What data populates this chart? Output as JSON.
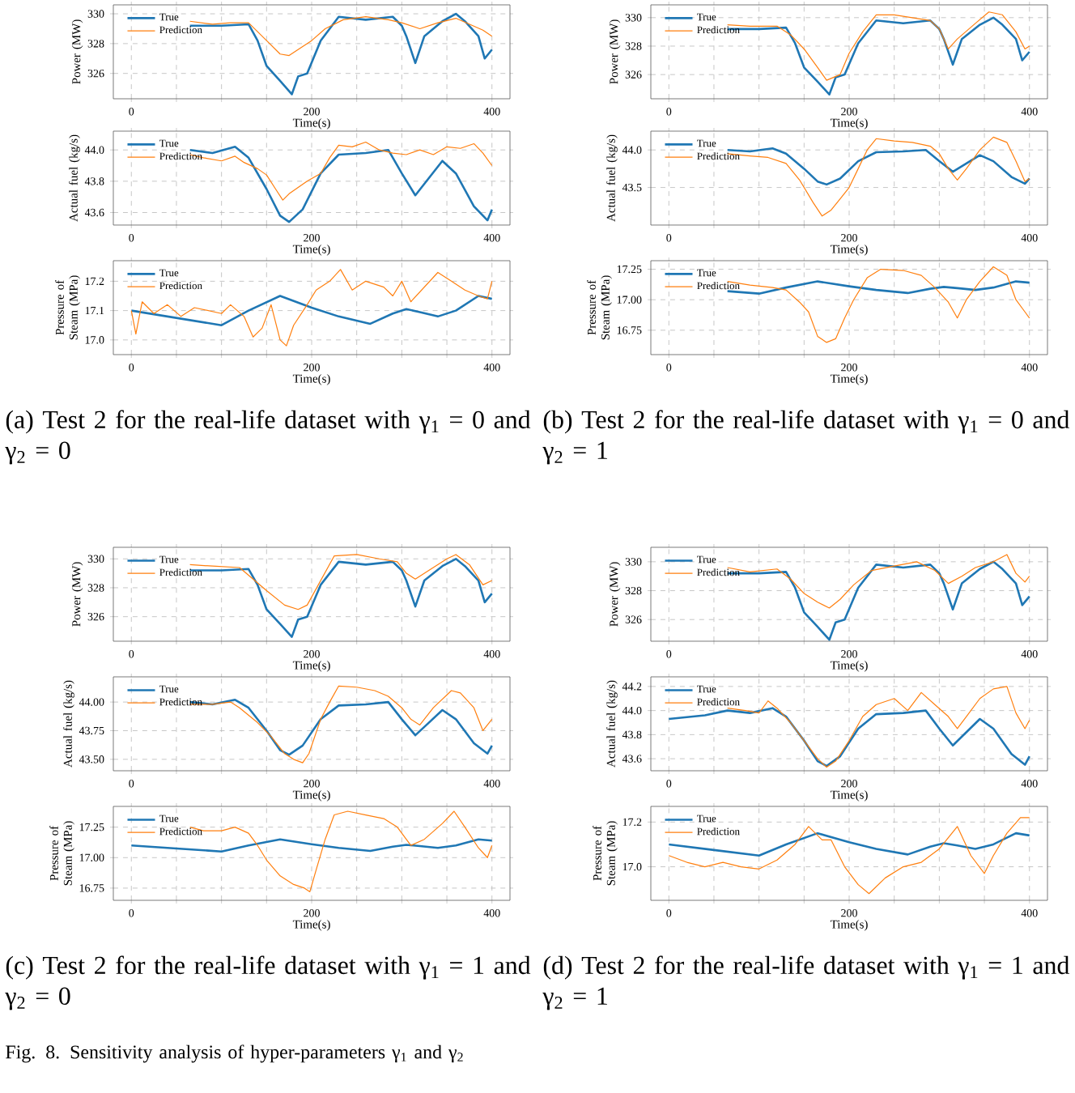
{
  "chart_data": [
    {
      "type": "line",
      "xlabel": "Time(s)",
      "ylabel": "Power (MW)",
      "xlim": [
        -20,
        420
      ],
      "xticks": [
        0,
        {
          "value": 50,
          "label": null
        },
        {
          "value": 100,
          "label": null
        },
        {
          "value": 150,
          "label": null
        },
        200,
        {
          "value": 250,
          "label": null
        },
        {
          "value": 300,
          "label": null
        },
        {
          "value": 350,
          "label": null
        },
        400
      ],
      "ylim": [
        324.3,
        330.6
      ],
      "yticks": [
        326,
        328,
        330
      ],
      "grid": true,
      "legend": "top left",
      "series": [
        {
          "name": "True",
          "color": "#1f77b4",
          "x": [
            65,
            100,
            130,
            140,
            150,
            165,
            178,
            185,
            195,
            210,
            230,
            260,
            290,
            300,
            305,
            315,
            325,
            345,
            360,
            370,
            385,
            392,
            400
          ],
          "values": [
            329.2,
            329.2,
            329.3,
            328.2,
            326.5,
            325.5,
            324.6,
            325.8,
            326.0,
            328.2,
            329.8,
            329.6,
            329.8,
            329.2,
            328.5,
            326.7,
            328.5,
            329.5,
            330.0,
            329.5,
            328.5,
            327.0,
            327.6
          ]
        },
        {
          "name": "Prediction",
          "color": "#ff7f0e",
          "x": [
            65,
            90,
            110,
            130,
            140,
            150,
            165,
            175,
            190,
            200,
            215,
            235,
            260,
            285,
            300,
            320,
            340,
            360,
            375,
            390,
            400
          ],
          "values": [
            329.5,
            329.3,
            329.4,
            329.4,
            328.8,
            328.2,
            327.3,
            327.2,
            327.8,
            328.2,
            329.0,
            329.6,
            329.8,
            329.6,
            329.4,
            329.0,
            329.4,
            329.7,
            329.3,
            328.9,
            328.5
          ]
        }
      ]
    },
    {
      "type": "line",
      "xlabel": "Time(s)",
      "ylabel": "Actual fuel (kg/s)",
      "xlim": [
        -20,
        420
      ],
      "xticks": [
        0,
        {
          "value": 50,
          "label": null
        },
        {
          "value": 100,
          "label": null
        },
        {
          "value": 150,
          "label": null
        },
        200,
        {
          "value": 250,
          "label": null
        },
        {
          "value": 300,
          "label": null
        },
        {
          "value": 350,
          "label": null
        },
        400
      ],
      "ylim": [
        43.52,
        44.12
      ],
      "yticks": [
        43.6,
        43.8,
        {
          "value": 44,
          "label": "44.0"
        }
      ],
      "grid": true,
      "legend": "top left",
      "series": [
        {
          "name": "True",
          "color": "#1f77b4",
          "x": [
            65,
            90,
            115,
            130,
            150,
            165,
            175,
            190,
            210,
            230,
            260,
            285,
            300,
            315,
            330,
            345,
            360,
            380,
            395,
            400
          ],
          "values": [
            44.0,
            43.98,
            44.02,
            43.95,
            43.75,
            43.58,
            43.54,
            43.62,
            43.85,
            43.97,
            43.98,
            44.0,
            43.85,
            43.71,
            43.82,
            43.93,
            43.85,
            43.64,
            43.55,
            43.62
          ]
        },
        {
          "name": "Prediction",
          "color": "#ff7f0e",
          "x": [
            65,
            80,
            100,
            115,
            125,
            140,
            150,
            160,
            168,
            175,
            185,
            195,
            210,
            220,
            230,
            245,
            260,
            275,
            290,
            305,
            320,
            335,
            350,
            365,
            380,
            390,
            400
          ],
          "values": [
            43.97,
            43.95,
            43.93,
            43.96,
            43.92,
            43.88,
            43.84,
            43.75,
            43.68,
            43.72,
            43.76,
            43.8,
            43.85,
            43.95,
            44.03,
            44.02,
            44.05,
            44.0,
            43.98,
            43.97,
            44.0,
            43.97,
            44.02,
            44.01,
            44.04,
            43.98,
            43.9
          ]
        }
      ]
    },
    {
      "type": "line",
      "xlabel": "Time(s)",
      "ylabel": "Pressure of Steam (MPa)",
      "xlim": [
        -20,
        420
      ],
      "xticks": [
        0,
        {
          "value": 50,
          "label": null
        },
        {
          "value": 100,
          "label": null
        },
        {
          "value": 150,
          "label": null
        },
        200,
        {
          "value": 250,
          "label": null
        },
        {
          "value": 300,
          "label": null
        },
        {
          "value": 350,
          "label": null
        },
        400
      ],
      "ylim": [
        16.95,
        17.27
      ],
      "yticks": [
        {
          "value": 17,
          "label": "17.0"
        },
        17.1,
        17.2
      ],
      "grid": true,
      "legend": "top left",
      "annotations": [
        "(a) Test 2 for the real-life dataset with γ$_{1}$ = 0 and γ$_{2}$ = 0"
      ],
      "series": [
        {
          "name": "True",
          "color": "#1f77b4",
          "x": [
            0,
            50,
            100,
            130,
            165,
            200,
            230,
            265,
            290,
            305,
            320,
            340,
            360,
            385,
            400
          ],
          "values": [
            17.1,
            17.075,
            17.05,
            17.1,
            17.15,
            17.11,
            17.08,
            17.055,
            17.09,
            17.105,
            17.095,
            17.08,
            17.1,
            17.15,
            17.14
          ]
        },
        {
          "name": "Prediction",
          "color": "#ff7f0e",
          "x": [
            0,
            5,
            12,
            25,
            40,
            55,
            70,
            85,
            100,
            110,
            125,
            135,
            145,
            155,
            165,
            172,
            180,
            195,
            205,
            220,
            232,
            245,
            260,
            280,
            290,
            300,
            310,
            325,
            340,
            355,
            370,
            385,
            395,
            400
          ],
          "values": [
            17.1,
            17.02,
            17.13,
            17.09,
            17.12,
            17.08,
            17.11,
            17.1,
            17.09,
            17.12,
            17.08,
            17.01,
            17.04,
            17.12,
            17.0,
            16.98,
            17.05,
            17.12,
            17.17,
            17.2,
            17.24,
            17.17,
            17.2,
            17.18,
            17.15,
            17.2,
            17.13,
            17.18,
            17.23,
            17.2,
            17.17,
            17.15,
            17.14,
            17.2
          ]
        }
      ]
    },
    {
      "type": "line",
      "xlabel": "Time(s)",
      "ylabel": "Power (MW)",
      "xlim": [
        -20,
        420
      ],
      "xticks": [
        0,
        {
          "value": 50,
          "label": null
        },
        {
          "value": 100,
          "label": null
        },
        {
          "value": 150,
          "label": null
        },
        200,
        {
          "value": 250,
          "label": null
        },
        {
          "value": 300,
          "label": null
        },
        {
          "value": 350,
          "label": null
        },
        400
      ],
      "ylim": [
        324.3,
        330.9
      ],
      "yticks": [
        326,
        328,
        330
      ],
      "grid": true,
      "legend": "top left",
      "series": [
        {
          "name": "True",
          "color": "#1f77b4",
          "x": [
            65,
            100,
            130,
            140,
            150,
            165,
            178,
            185,
            195,
            210,
            230,
            260,
            290,
            300,
            305,
            315,
            325,
            345,
            360,
            370,
            385,
            392,
            400
          ],
          "values": [
            329.2,
            329.2,
            329.3,
            328.2,
            326.5,
            325.5,
            324.6,
            325.8,
            326.0,
            328.2,
            329.8,
            329.6,
            329.8,
            329.2,
            328.5,
            326.7,
            328.5,
            329.5,
            330.0,
            329.5,
            328.5,
            327.0,
            327.6
          ]
        },
        {
          "name": "Prediction",
          "color": "#ff7f0e",
          "x": [
            65,
            90,
            120,
            135,
            150,
            165,
            175,
            190,
            200,
            215,
            230,
            250,
            270,
            290,
            300,
            310,
            320,
            340,
            355,
            370,
            385,
            395,
            400
          ],
          "values": [
            329.5,
            329.4,
            329.4,
            328.8,
            327.8,
            326.5,
            325.6,
            326.0,
            327.5,
            329.0,
            330.2,
            330.2,
            330.0,
            329.8,
            329.2,
            327.8,
            328.5,
            329.6,
            330.4,
            330.2,
            329.0,
            327.8,
            328.0
          ]
        }
      ]
    },
    {
      "type": "line",
      "xlabel": "Time(s)",
      "ylabel": "Actual fuel (kg/s)",
      "xlim": [
        -20,
        420
      ],
      "xticks": [
        0,
        {
          "value": 50,
          "label": null
        },
        {
          "value": 100,
          "label": null
        },
        {
          "value": 150,
          "label": null
        },
        200,
        {
          "value": 250,
          "label": null
        },
        {
          "value": 300,
          "label": null
        },
        {
          "value": 350,
          "label": null
        },
        400
      ],
      "ylim": [
        43.0,
        44.25
      ],
      "yticks": [
        43.5,
        {
          "value": 44,
          "label": "44.0"
        }
      ],
      "grid": true,
      "legend": "top left",
      "series": [
        {
          "name": "True",
          "color": "#1f77b4",
          "x": [
            65,
            90,
            115,
            130,
            150,
            165,
            175,
            190,
            210,
            230,
            260,
            285,
            300,
            315,
            330,
            345,
            360,
            380,
            395,
            400
          ],
          "values": [
            44.0,
            43.98,
            44.02,
            43.95,
            43.75,
            43.58,
            43.54,
            43.62,
            43.85,
            43.97,
            43.98,
            44.0,
            43.85,
            43.71,
            43.82,
            43.93,
            43.85,
            43.64,
            43.55,
            43.62
          ]
        },
        {
          "name": "Prediction",
          "color": "#ff7f0e",
          "x": [
            65,
            90,
            110,
            130,
            145,
            160,
            170,
            180,
            190,
            200,
            210,
            220,
            230,
            250,
            270,
            290,
            300,
            310,
            320,
            330,
            345,
            360,
            375,
            385,
            395,
            400
          ],
          "values": [
            43.95,
            43.92,
            43.9,
            43.82,
            43.6,
            43.3,
            43.12,
            43.2,
            43.35,
            43.5,
            43.75,
            44.0,
            44.15,
            44.12,
            44.1,
            44.05,
            43.95,
            43.75,
            43.6,
            43.75,
            44.0,
            44.17,
            44.1,
            43.85,
            43.58,
            43.62
          ]
        }
      ]
    },
    {
      "type": "line",
      "xlabel": "Time(s)",
      "ylabel": "Pressure of Steam (MPa)",
      "xlim": [
        -20,
        420
      ],
      "xticks": [
        0,
        {
          "value": 50,
          "label": null
        },
        {
          "value": 100,
          "label": null
        },
        {
          "value": 150,
          "label": null
        },
        200,
        {
          "value": 250,
          "label": null
        },
        {
          "value": 300,
          "label": null
        },
        {
          "value": 350,
          "label": null
        },
        400
      ],
      "ylim": [
        16.55,
        17.32
      ],
      "yticks": [
        16.75,
        {
          "value": 17,
          "label": "17.00"
        },
        17.25
      ],
      "grid": true,
      "legend": "top left",
      "annotations": [
        "(b) Test 2 for the real-life dataset with γ$_{1}$ = 0 and γ$_{2}$ = 1"
      ],
      "series": [
        {
          "name": "True",
          "color": "#1f77b4",
          "x": [
            65,
            100,
            130,
            165,
            200,
            230,
            265,
            290,
            305,
            320,
            340,
            360,
            385,
            400
          ],
          "values": [
            17.07,
            17.05,
            17.1,
            17.15,
            17.11,
            17.08,
            17.055,
            17.09,
            17.105,
            17.095,
            17.08,
            17.1,
            17.15,
            17.14
          ]
        },
        {
          "name": "Prediction",
          "color": "#ff7f0e",
          "x": [
            65,
            90,
            115,
            130,
            145,
            155,
            165,
            175,
            185,
            195,
            205,
            220,
            235,
            260,
            280,
            295,
            310,
            320,
            330,
            345,
            360,
            375,
            385,
            395,
            400
          ],
          "values": [
            17.15,
            17.12,
            17.1,
            17.08,
            16.98,
            16.9,
            16.7,
            16.65,
            16.68,
            16.85,
            17.0,
            17.18,
            17.25,
            17.24,
            17.2,
            17.1,
            16.98,
            16.85,
            17.0,
            17.15,
            17.27,
            17.2,
            17.0,
            16.9,
            16.85
          ]
        }
      ]
    },
    {
      "type": "line",
      "xlabel": "Time(s)",
      "ylabel": "Power (MW)",
      "xlim": [
        -20,
        420
      ],
      "xticks": [
        0,
        {
          "value": 50,
          "label": null
        },
        {
          "value": 100,
          "label": null
        },
        {
          "value": 150,
          "label": null
        },
        200,
        {
          "value": 250,
          "label": null
        },
        {
          "value": 300,
          "label": null
        },
        {
          "value": 350,
          "label": null
        },
        400
      ],
      "ylim": [
        324.3,
        330.8
      ],
      "yticks": [
        326,
        328,
        330
      ],
      "grid": true,
      "legend": "top left",
      "series": [
        {
          "name": "True",
          "color": "#1f77b4",
          "x": [
            65,
            100,
            130,
            140,
            150,
            165,
            178,
            185,
            195,
            210,
            230,
            260,
            290,
            300,
            305,
            315,
            325,
            345,
            360,
            370,
            385,
            392,
            400
          ],
          "values": [
            329.2,
            329.2,
            329.3,
            328.2,
            326.5,
            325.5,
            324.6,
            325.8,
            326.0,
            328.2,
            329.8,
            329.6,
            329.8,
            329.2,
            328.5,
            326.7,
            328.5,
            329.5,
            330.0,
            329.5,
            328.5,
            327.0,
            327.6
          ]
        },
        {
          "name": "Prediction",
          "color": "#ff7f0e",
          "x": [
            65,
            90,
            120,
            135,
            150,
            170,
            185,
            195,
            210,
            225,
            250,
            275,
            295,
            305,
            315,
            330,
            350,
            360,
            375,
            390,
            400
          ],
          "values": [
            329.6,
            329.5,
            329.4,
            328.6,
            327.8,
            326.8,
            326.5,
            326.8,
            328.5,
            330.2,
            330.3,
            330.0,
            329.8,
            329.0,
            328.6,
            329.2,
            330.0,
            330.3,
            329.6,
            328.2,
            328.5
          ]
        }
      ]
    },
    {
      "type": "line",
      "xlabel": "Time(s)",
      "ylabel": "Actual fuel (kg/s)",
      "xlim": [
        -20,
        420
      ],
      "xticks": [
        0,
        {
          "value": 50,
          "label": null
        },
        {
          "value": 100,
          "label": null
        },
        {
          "value": 150,
          "label": null
        },
        200,
        {
          "value": 250,
          "label": null
        },
        {
          "value": 300,
          "label": null
        },
        {
          "value": 350,
          "label": null
        },
        400
      ],
      "ylim": [
        43.4,
        44.22
      ],
      "yticks": [
        {
          "value": 43.5,
          "label": "43.50"
        },
        43.75,
        {
          "value": 44,
          "label": "44.00"
        }
      ],
      "grid": true,
      "legend": "top left",
      "series": [
        {
          "name": "True",
          "color": "#1f77b4",
          "x": [
            65,
            90,
            115,
            130,
            150,
            165,
            175,
            190,
            210,
            230,
            260,
            285,
            300,
            315,
            330,
            345,
            360,
            380,
            395,
            400
          ],
          "values": [
            44.0,
            43.98,
            44.02,
            43.95,
            43.75,
            43.58,
            43.54,
            43.62,
            43.85,
            43.97,
            43.98,
            44.0,
            43.85,
            43.71,
            43.82,
            43.93,
            43.85,
            43.64,
            43.55,
            43.62
          ]
        },
        {
          "name": "Prediction",
          "color": "#ff7f0e",
          "x": [
            65,
            90,
            110,
            120,
            140,
            155,
            170,
            180,
            190,
            197,
            210,
            220,
            230,
            250,
            270,
            285,
            300,
            310,
            320,
            335,
            355,
            365,
            380,
            390,
            400
          ],
          "values": [
            43.98,
            43.98,
            44.0,
            43.95,
            43.82,
            43.7,
            43.55,
            43.5,
            43.47,
            43.55,
            43.85,
            44.0,
            44.14,
            44.13,
            44.1,
            44.05,
            43.95,
            43.85,
            43.8,
            43.95,
            44.1,
            44.08,
            43.95,
            43.75,
            43.85
          ]
        }
      ]
    },
    {
      "type": "line",
      "xlabel": "Time(s)",
      "ylabel": "Pressure of Steam (MPa)",
      "xlim": [
        -20,
        420
      ],
      "xticks": [
        0,
        {
          "value": 50,
          "label": null
        },
        {
          "value": 100,
          "label": null
        },
        {
          "value": 150,
          "label": null
        },
        200,
        {
          "value": 250,
          "label": null
        },
        {
          "value": 300,
          "label": null
        },
        {
          "value": 350,
          "label": null
        },
        400
      ],
      "ylim": [
        16.65,
        17.42
      ],
      "yticks": [
        16.75,
        {
          "value": 17,
          "label": "17.00"
        },
        17.25
      ],
      "grid": true,
      "legend": "top left",
      "annotations": [
        "(c) Test 2 for the real-life dataset with γ$_{1}$ = 1 and γ$_{2}$ = 0"
      ],
      "series": [
        {
          "name": "True",
          "color": "#1f77b4",
          "x": [
            0,
            50,
            100,
            130,
            165,
            200,
            230,
            265,
            290,
            305,
            320,
            340,
            360,
            385,
            400
          ],
          "values": [
            17.1,
            17.075,
            17.05,
            17.1,
            17.15,
            17.11,
            17.08,
            17.055,
            17.09,
            17.105,
            17.095,
            17.08,
            17.1,
            17.15,
            17.14
          ]
        },
        {
          "name": "Prediction",
          "color": "#ff7f0e",
          "x": [
            65,
            80,
            100,
            115,
            130,
            140,
            150,
            165,
            180,
            192,
            198,
            205,
            215,
            225,
            240,
            260,
            280,
            295,
            310,
            325,
            345,
            358,
            370,
            385,
            395,
            400
          ],
          "values": [
            17.25,
            17.22,
            17.22,
            17.25,
            17.2,
            17.1,
            16.98,
            16.85,
            16.78,
            16.75,
            16.72,
            16.9,
            17.15,
            17.35,
            17.38,
            17.35,
            17.32,
            17.25,
            17.1,
            17.15,
            17.28,
            17.38,
            17.25,
            17.08,
            17.0,
            17.1
          ]
        }
      ]
    },
    {
      "type": "line",
      "xlabel": "Time(s)",
      "ylabel": "Power (MW)",
      "xlim": [
        -20,
        420
      ],
      "xticks": [
        0,
        {
          "value": 50,
          "label": null
        },
        {
          "value": 100,
          "label": null
        },
        {
          "value": 150,
          "label": null
        },
        200,
        {
          "value": 250,
          "label": null
        },
        {
          "value": 300,
          "label": null
        },
        {
          "value": 350,
          "label": null
        },
        400
      ],
      "ylim": [
        324.5,
        331
      ],
      "yticks": [
        326,
        328,
        330
      ],
      "grid": true,
      "legend": "top left",
      "series": [
        {
          "name": "True",
          "color": "#1f77b4",
          "x": [
            65,
            100,
            130,
            140,
            150,
            165,
            178,
            185,
            195,
            210,
            230,
            260,
            290,
            300,
            305,
            315,
            325,
            345,
            360,
            370,
            385,
            392,
            400
          ],
          "values": [
            329.2,
            329.2,
            329.3,
            328.2,
            326.5,
            325.5,
            324.6,
            325.8,
            326.0,
            328.2,
            329.8,
            329.6,
            329.8,
            329.2,
            328.5,
            326.7,
            328.5,
            329.5,
            330.0,
            329.5,
            328.5,
            327.0,
            327.6
          ]
        },
        {
          "name": "Prediction",
          "color": "#ff7f0e",
          "x": [
            65,
            90,
            120,
            135,
            150,
            165,
            178,
            190,
            205,
            225,
            250,
            275,
            295,
            310,
            325,
            340,
            360,
            375,
            385,
            395,
            400
          ],
          "values": [
            329.6,
            329.3,
            329.5,
            328.8,
            327.8,
            327.2,
            326.8,
            327.4,
            328.4,
            329.4,
            329.7,
            330.0,
            329.4,
            328.5,
            329.0,
            329.6,
            330.0,
            330.5,
            329.2,
            328.6,
            329.0
          ]
        }
      ]
    },
    {
      "type": "line",
      "xlabel": "Time(s)",
      "ylabel": "Actual fuel (kg/s)",
      "xlim": [
        -20,
        420
      ],
      "xticks": [
        0,
        {
          "value": 50,
          "label": null
        },
        {
          "value": 100,
          "label": null
        },
        {
          "value": 150,
          "label": null
        },
        200,
        {
          "value": 250,
          "label": null
        },
        {
          "value": 300,
          "label": null
        },
        {
          "value": 350,
          "label": null
        },
        400
      ],
      "ylim": [
        43.5,
        44.28
      ],
      "yticks": [
        43.6,
        43.8,
        {
          "value": 44,
          "label": "44.0"
        },
        44.2
      ],
      "grid": true,
      "legend": "top left",
      "series": [
        {
          "name": "True",
          "color": "#1f77b4",
          "x": [
            0,
            40,
            65,
            90,
            115,
            130,
            150,
            165,
            175,
            190,
            210,
            230,
            260,
            285,
            300,
            315,
            330,
            345,
            360,
            380,
            395,
            400
          ],
          "values": [
            43.93,
            43.96,
            44.0,
            43.98,
            44.02,
            43.95,
            43.75,
            43.58,
            43.54,
            43.62,
            43.85,
            43.97,
            43.98,
            44.0,
            43.85,
            43.71,
            43.82,
            43.93,
            43.85,
            43.64,
            43.55,
            43.62
          ]
        },
        {
          "name": "Prediction",
          "color": "#ff7f0e",
          "x": [
            65,
            85,
            100,
            110,
            120,
            135,
            150,
            165,
            175,
            185,
            200,
            215,
            230,
            250,
            265,
            280,
            295,
            310,
            320,
            330,
            345,
            360,
            375,
            385,
            395,
            400
          ],
          "values": [
            44.02,
            44.0,
            43.98,
            44.08,
            44.02,
            43.9,
            43.75,
            43.6,
            43.53,
            43.58,
            43.75,
            43.95,
            44.05,
            44.1,
            44.0,
            44.15,
            44.05,
            43.95,
            43.85,
            43.95,
            44.1,
            44.18,
            44.2,
            43.98,
            43.85,
            43.92
          ]
        }
      ]
    },
    {
      "type": "line",
      "xlabel": "Time(s)",
      "ylabel": "Pressure of Steam (MPa)",
      "xlim": [
        -20,
        420
      ],
      "xticks": [
        0,
        {
          "value": 50,
          "label": null
        },
        {
          "value": 100,
          "label": null
        },
        {
          "value": 150,
          "label": null
        },
        200,
        {
          "value": 250,
          "label": null
        },
        {
          "value": 300,
          "label": null
        },
        {
          "value": 350,
          "label": null
        },
        400
      ],
      "ylim": [
        16.85,
        17.27
      ],
      "yticks": [
        {
          "value": 17,
          "label": "17.0"
        },
        17.2
      ],
      "grid": true,
      "legend": "top left",
      "annotations": [
        "(d) Test 2 for the real-life dataset with γ$_{1}$ = 1 and γ$_{2}$ = 1",
        "Fig. 8.  Sensitivity analysis of hyper-parameters γ$_{1}$ and γ$_{2}$"
      ],
      "series": [
        {
          "name": "True",
          "color": "#1f77b4",
          "x": [
            0,
            50,
            100,
            130,
            165,
            200,
            230,
            265,
            290,
            305,
            320,
            340,
            360,
            385,
            400
          ],
          "values": [
            17.1,
            17.075,
            17.05,
            17.1,
            17.15,
            17.11,
            17.08,
            17.055,
            17.09,
            17.105,
            17.095,
            17.08,
            17.1,
            17.15,
            17.14
          ]
        },
        {
          "name": "Prediction",
          "color": "#ff7f0e",
          "x": [
            0,
            20,
            40,
            60,
            80,
            100,
            120,
            140,
            155,
            170,
            180,
            195,
            210,
            222,
            240,
            260,
            280,
            300,
            320,
            335,
            350,
            360,
            375,
            390,
            400
          ],
          "values": [
            17.05,
            17.02,
            17.0,
            17.02,
            17.0,
            16.99,
            17.03,
            17.1,
            17.18,
            17.12,
            17.12,
            17.0,
            16.92,
            16.88,
            16.95,
            17.0,
            17.02,
            17.08,
            17.18,
            17.05,
            16.97,
            17.05,
            17.15,
            17.22,
            17.22
          ]
        }
      ]
    }
  ]
}
